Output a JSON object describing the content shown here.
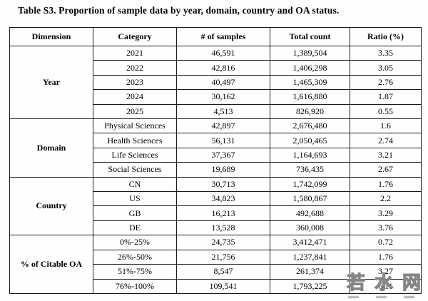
{
  "title": "Table S3. Proportion of sample data by year, domain, country and OA status.",
  "table": {
    "headers": [
      "Dimension",
      "Category",
      "# of samples",
      "Total count",
      "Ratio (%)"
    ],
    "groups": [
      {
        "dimension": "Year",
        "rows": [
          {
            "category": "2021",
            "samples": "46,591",
            "total": "1,389,504",
            "ratio": "3.35"
          },
          {
            "category": "2022",
            "samples": "42,816",
            "total": "1,406,298",
            "ratio": "3.05"
          },
          {
            "category": "2023",
            "samples": "40,497",
            "total": "1,465,309",
            "ratio": "2.76"
          },
          {
            "category": "2024",
            "samples": "30,162",
            "total": "1,616,880",
            "ratio": "1.87"
          },
          {
            "category": "2025",
            "samples": "4,513",
            "total": "826,920",
            "ratio": "0.55"
          }
        ]
      },
      {
        "dimension": "Domain",
        "rows": [
          {
            "category": "Physical Sciences",
            "samples": "42,897",
            "total": "2,676,480",
            "ratio": "1.6"
          },
          {
            "category": "Health Sciences",
            "samples": "56,131",
            "total": "2,050,465",
            "ratio": "2.74"
          },
          {
            "category": "Life Sciences",
            "samples": "37,367",
            "total": "1,164,693",
            "ratio": "3.21"
          },
          {
            "category": "Social Sciences",
            "samples": "19,689",
            "total": "736,435",
            "ratio": "2.67"
          }
        ]
      },
      {
        "dimension": "Country",
        "rows": [
          {
            "category": "CN",
            "samples": "30,713",
            "total": "1,742,099",
            "ratio": "1.76"
          },
          {
            "category": "US",
            "samples": "34,823",
            "total": "1,580,867",
            "ratio": "2.2"
          },
          {
            "category": "GB",
            "samples": "16,213",
            "total": "492,688",
            "ratio": "3.29"
          },
          {
            "category": "DE",
            "samples": "13,528",
            "total": "360,008",
            "ratio": "3.76"
          }
        ]
      },
      {
        "dimension": "% of Citable OA",
        "rows": [
          {
            "category": "0%-25%",
            "samples": "24,735",
            "total": "3,412,471",
            "ratio": "0.72"
          },
          {
            "category": "26%-50%",
            "samples": "21,756",
            "total": "1,237,841",
            "ratio": "1.76"
          },
          {
            "category": "51%-75%",
            "samples": "8,547",
            "total": "261,374",
            "ratio": "3.27"
          },
          {
            "category": "76%-100%",
            "samples": "109,541",
            "total": "1,793,225",
            "ratio": "6.11"
          }
        ]
      }
    ]
  },
  "watermark": {
    "characters": [
      "若",
      "水",
      "网"
    ]
  }
}
